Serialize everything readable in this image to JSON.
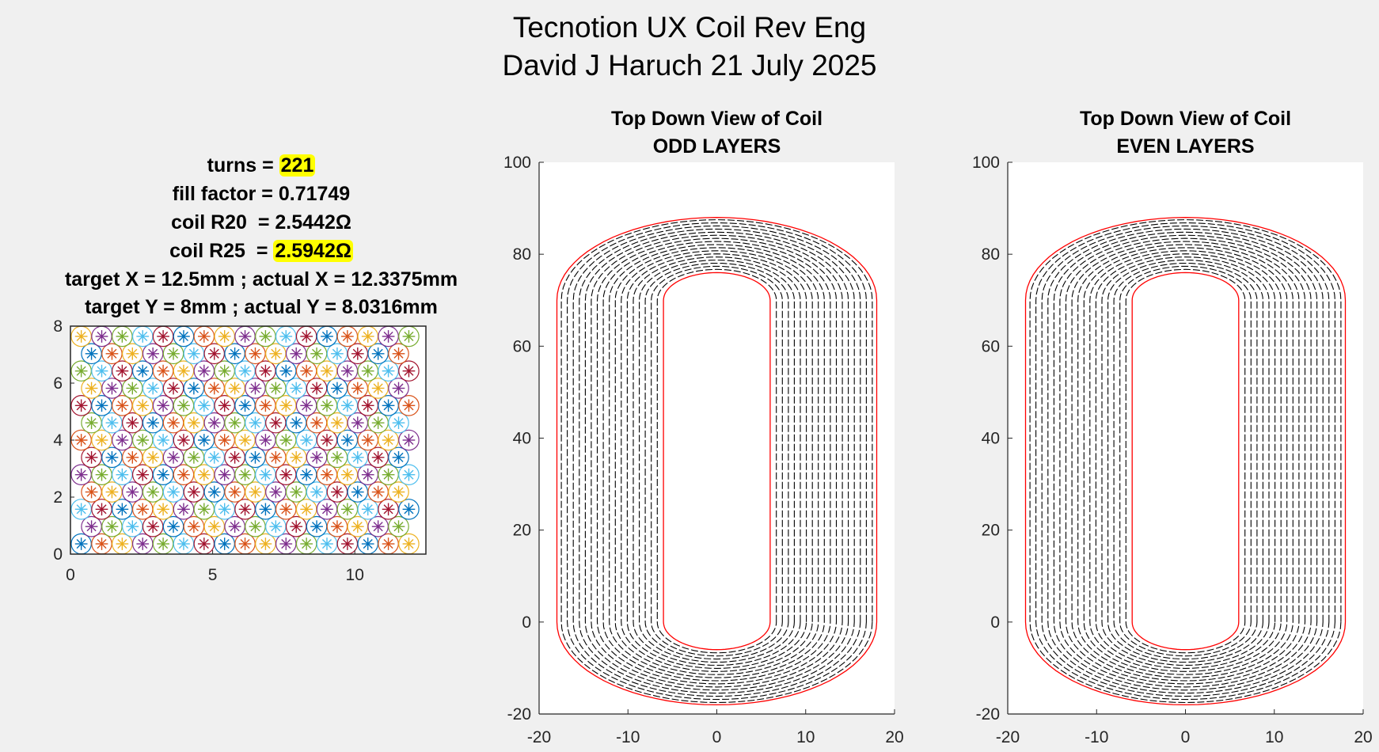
{
  "figure": {
    "title_line1": "Tecnotion UX Coil Rev Eng",
    "title_line2": "David J Haruch 21 July 2025"
  },
  "info": {
    "turns_label": "turns = ",
    "turns_value": "221",
    "fill_factor": "fill factor = 0.71749",
    "r20": "coil R20  = 2.5442Ω",
    "r25_label": "coil R25  = ",
    "r25_value": "2.5942Ω",
    "target_x": "target X = 12.5mm ; actual X = 12.3375mm",
    "target_y": "target Y = 8mm ; actual Y = 8.0316mm"
  },
  "colors": {
    "highlight": "#ffff00",
    "outline": "#ff0000",
    "winding": "#000000",
    "palette": [
      "#0072bd",
      "#d95319",
      "#edb120",
      "#7e2f8e",
      "#77ac30",
      "#4dbeee",
      "#a2142f"
    ]
  },
  "chart_data": [
    {
      "type": "scatter",
      "name": "cross-section",
      "xlim": [
        0,
        12.5
      ],
      "ylim": [
        0,
        8
      ],
      "xticks": [
        "0",
        "5",
        "10"
      ],
      "yticks": [
        "0",
        "2",
        "4",
        "6",
        "8"
      ],
      "marker": "asterisk-in-circle",
      "wire_pitch": 0.72,
      "rows": 13,
      "cols_even_row": 17,
      "cols_odd_row": 16,
      "count": 221
    },
    {
      "type": "line",
      "title": "Top Down View of Coil",
      "subtitle": "ODD LAYERS",
      "xlim": [
        -20,
        20
      ],
      "ylim": [
        -20,
        100
      ],
      "xticks": [
        "-20",
        "-10",
        "0",
        "10",
        "20"
      ],
      "yticks": [
        "-20",
        "0",
        "20",
        "40",
        "60",
        "80",
        "100"
      ],
      "inner_outline": {
        "half_width": 6,
        "radius": 6,
        "y_bottom": 0,
        "y_top": 70
      },
      "outer_outline": {
        "half_width": 18,
        "radius": 18,
        "y_bottom": 0,
        "y_top": 70
      },
      "winding_layers": 17,
      "line_style": "dashed"
    },
    {
      "type": "line",
      "title": "Top Down View of Coil",
      "subtitle": "EVEN LAYERS",
      "xlim": [
        -20,
        20
      ],
      "ylim": [
        -20,
        100
      ],
      "xticks": [
        "-20",
        "-10",
        "0",
        "10",
        "20"
      ],
      "yticks": [
        "-20",
        "0",
        "20",
        "40",
        "60",
        "80",
        "100"
      ],
      "inner_outline": {
        "half_width": 6,
        "radius": 6,
        "y_bottom": 0,
        "y_top": 70
      },
      "outer_outline": {
        "half_width": 18,
        "radius": 18,
        "y_bottom": 0,
        "y_top": 70
      },
      "winding_layers": 17,
      "line_style": "dashed"
    }
  ]
}
